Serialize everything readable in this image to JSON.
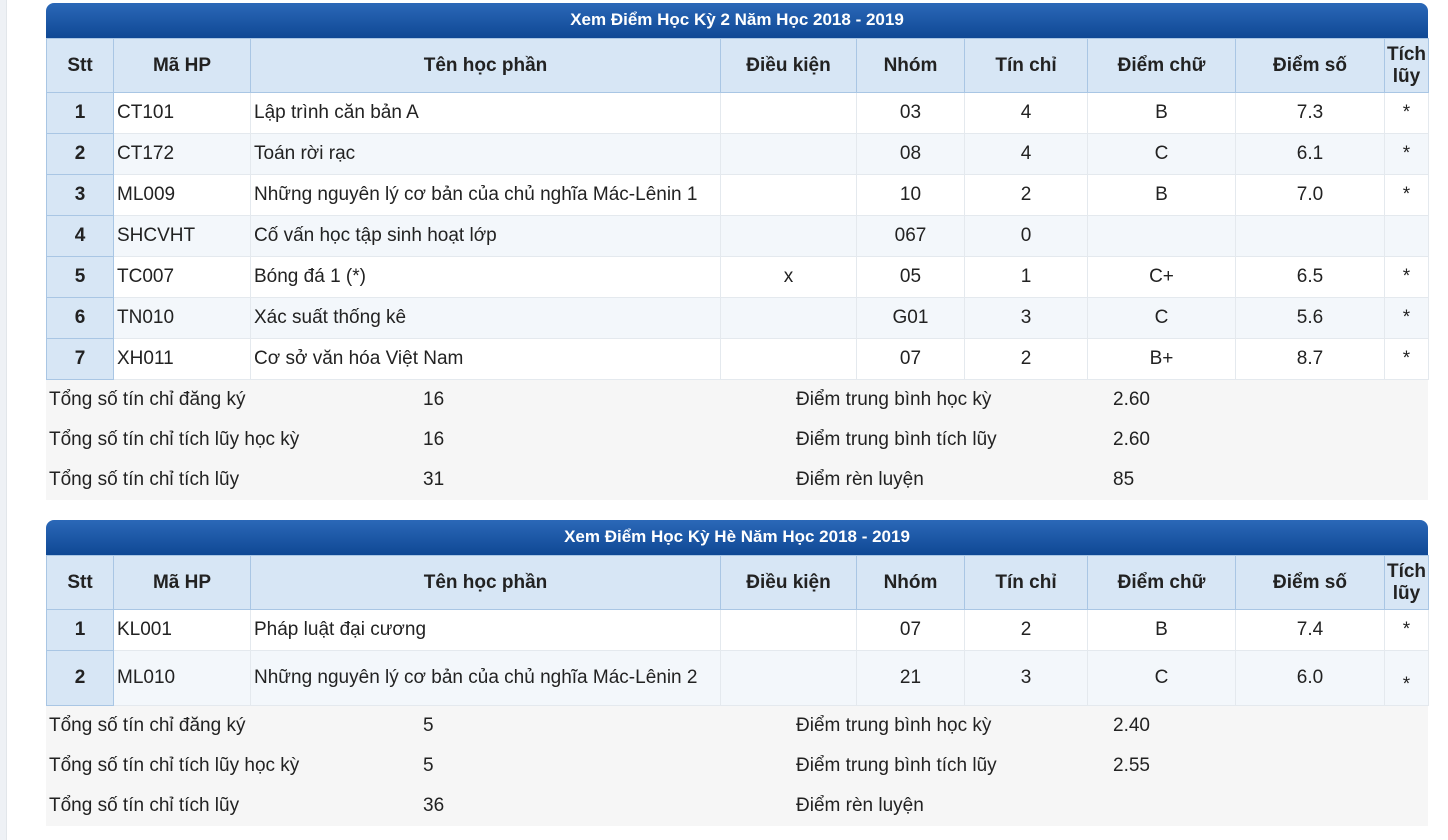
{
  "columns": [
    "Stt",
    "Mã HP",
    "Tên học phần",
    "Điều kiện",
    "Nhóm",
    "Tín chỉ",
    "Điểm chữ",
    "Điểm số",
    "Tích lũy"
  ],
  "semesters": [
    {
      "title": "Xem Điểm Học Kỳ 2 Năm Học 2018 - 2019",
      "rows": [
        {
          "stt": "1",
          "code": "CT101",
          "name": "Lập trình căn bản A",
          "condition": "",
          "group": "03",
          "credits": "4",
          "letter": "B",
          "score": "7.3",
          "accumulated": "*"
        },
        {
          "stt": "2",
          "code": "CT172",
          "name": "Toán rời rạc",
          "condition": "",
          "group": "08",
          "credits": "4",
          "letter": "C",
          "score": "6.1",
          "accumulated": "*"
        },
        {
          "stt": "3",
          "code": "ML009",
          "name": "Những nguyên lý cơ bản của chủ nghĩa Mác-Lênin 1",
          "condition": "",
          "group": "10",
          "credits": "2",
          "letter": "B",
          "score": "7.0",
          "accumulated": "*"
        },
        {
          "stt": "4",
          "code": "SHCVHT",
          "name": "Cố vấn học tập sinh hoạt lớp",
          "condition": "",
          "group": "067",
          "credits": "0",
          "letter": "",
          "score": "",
          "accumulated": ""
        },
        {
          "stt": "5",
          "code": "TC007",
          "name": "Bóng đá 1 (*)",
          "condition": "x",
          "group": "05",
          "credits": "1",
          "letter": "C+",
          "score": "6.5",
          "accumulated": "*"
        },
        {
          "stt": "6",
          "code": "TN010",
          "name": "Xác suất thống kê",
          "condition": "",
          "group": "G01",
          "credits": "3",
          "letter": "C",
          "score": "5.6",
          "accumulated": "*"
        },
        {
          "stt": "7",
          "code": "XH011",
          "name": "Cơ sở văn hóa Việt Nam",
          "condition": "",
          "group": "07",
          "credits": "2",
          "letter": "B+",
          "score": "8.7",
          "accumulated": "*"
        }
      ],
      "summary": [
        {
          "label": "Tổng số tín chỉ đăng ký",
          "value": "16",
          "label2": "Điểm trung bình học kỳ",
          "value2": "2.60"
        },
        {
          "label": "Tổng số tín chỉ tích lũy học kỳ",
          "value": "16",
          "label2": "Điểm trung bình tích lũy",
          "value2": "2.60"
        },
        {
          "label": "Tổng số tín chỉ tích lũy",
          "value": "31",
          "label2": "Điểm rèn luyện",
          "value2": "85"
        }
      ]
    },
    {
      "title": "Xem Điểm Học Kỳ Hè Năm Học 2018 - 2019",
      "rows": [
        {
          "stt": "1",
          "code": "KL001",
          "name": "Pháp luật đại cương",
          "condition": "",
          "group": "07",
          "credits": "2",
          "letter": "B",
          "score": "7.4",
          "accumulated": "*"
        },
        {
          "stt": "2",
          "code": "ML010",
          "name": "Những nguyên lý cơ bản của chủ nghĩa Mác-Lênin 2",
          "condition": "",
          "group": "21",
          "credits": "3",
          "letter": "C",
          "score": "6.0",
          "accumulated": "*"
        }
      ],
      "summary": [
        {
          "label": "Tổng số tín chỉ đăng ký",
          "value": "5",
          "label2": "Điểm trung bình học kỳ",
          "value2": "2.40"
        },
        {
          "label": "Tổng số tín chỉ tích lũy học kỳ",
          "value": "5",
          "label2": "Điểm trung bình tích lũy",
          "value2": "2.55"
        },
        {
          "label": "Tổng số tín chỉ tích lũy",
          "value": "36",
          "label2": "Điểm rèn luyện",
          "value2": ""
        }
      ]
    }
  ]
}
